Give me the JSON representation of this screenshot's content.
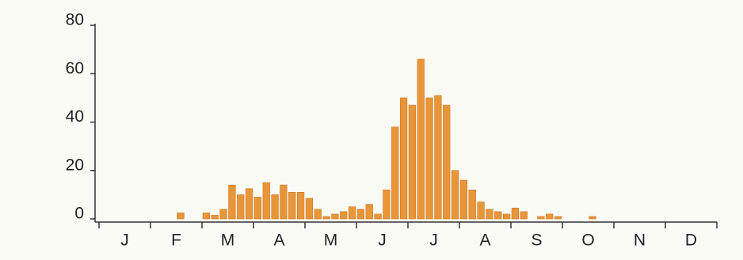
{
  "chart_data": {
    "type": "bar",
    "months": [
      "J",
      "F",
      "M",
      "A",
      "M",
      "J",
      "J",
      "A",
      "S",
      "O",
      "N",
      "D"
    ],
    "values": [
      0,
      0,
      0,
      0,
      0,
      0,
      0,
      0,
      0,
      2.5,
      0,
      0,
      2.5,
      1.5,
      4,
      14,
      10,
      12.5,
      9,
      15,
      10,
      14,
      11,
      11,
      8.5,
      4,
      1,
      2,
      3,
      5,
      4,
      6,
      2,
      12,
      38,
      50,
      47,
      66,
      50,
      51,
      47,
      20,
      16,
      12,
      7,
      4,
      3,
      2,
      4.5,
      3,
      0,
      1,
      2,
      1,
      0,
      0,
      0,
      1,
      0,
      0,
      0,
      0,
      0,
      0,
      0,
      0,
      0,
      0,
      0,
      0,
      0,
      0
    ],
    "color": "#e99638",
    "ylim": [
      0,
      80
    ],
    "yticks": [
      0,
      20,
      40,
      60,
      80
    ]
  }
}
